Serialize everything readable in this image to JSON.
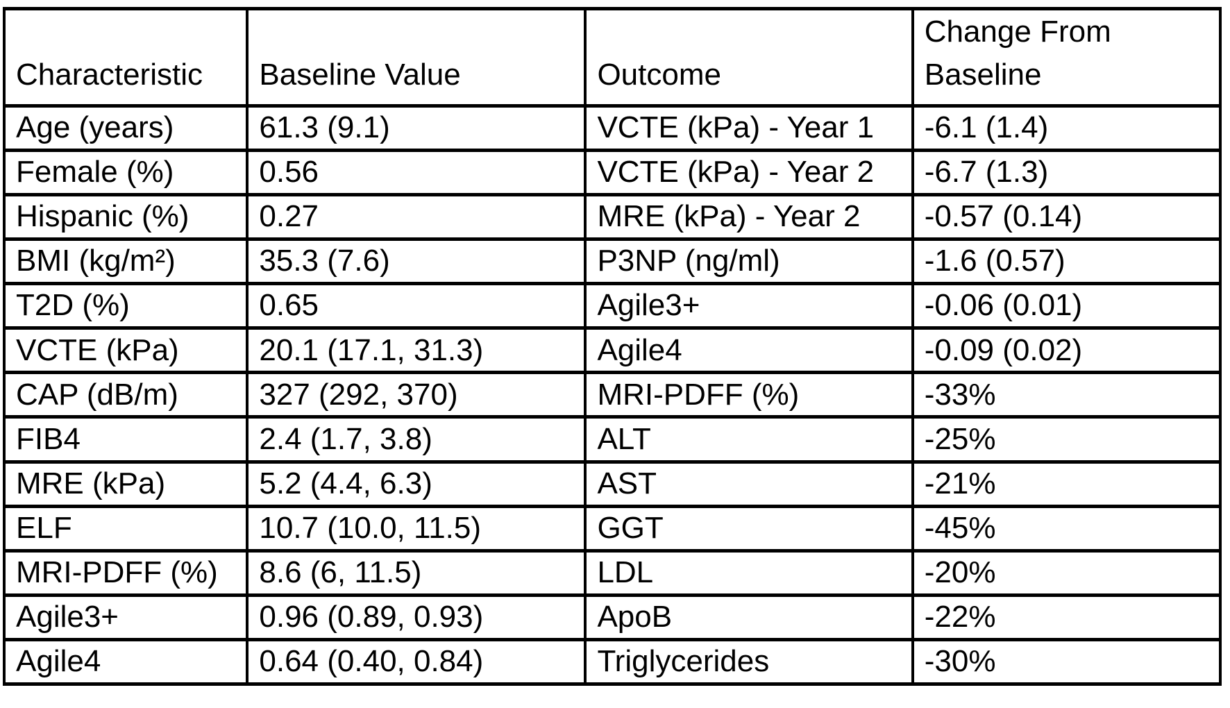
{
  "table": {
    "columns": [
      {
        "label": "Characteristic"
      },
      {
        "label": "Baseline Value"
      },
      {
        "label": "Outcome"
      },
      {
        "label": "Change From Baseline"
      }
    ],
    "rows": [
      {
        "cells": [
          "Age (years)",
          "61.3 (9.1)",
          "VCTE (kPa) - Year 1",
          "-6.1 (1.4)"
        ]
      },
      {
        "cells": [
          "Female (%)",
          "0.56",
          "VCTE (kPa) - Year 2",
          "-6.7 (1.3)"
        ]
      },
      {
        "cells": [
          "Hispanic (%)",
          "0.27",
          "MRE (kPa) - Year 2",
          "-0.57 (0.14)"
        ]
      },
      {
        "cells": [
          "BMI (kg/m²)",
          "35.3 (7.6)",
          "P3NP (ng/ml)",
          "-1.6 (0.57)"
        ]
      },
      {
        "cells": [
          "T2D (%)",
          "0.65",
          "Agile3+",
          "-0.06 (0.01)"
        ]
      },
      {
        "cells": [
          "VCTE (kPa)",
          "20.1 (17.1, 31.3)",
          "Agile4",
          "-0.09 (0.02)"
        ]
      },
      {
        "cells": [
          "CAP (dB/m)",
          "327 (292, 370)",
          "MRI-PDFF (%)",
          "-33%"
        ]
      },
      {
        "cells": [
          "FIB4",
          "2.4 (1.7, 3.8)",
          "ALT",
          "-25%"
        ]
      },
      {
        "cells": [
          "MRE (kPa)",
          "5.2 (4.4, 6.3)",
          "AST",
          "-21%"
        ]
      },
      {
        "cells": [
          "ELF",
          "10.7 (10.0, 11.5)",
          "GGT",
          "-45%"
        ]
      },
      {
        "cells": [
          "MRI-PDFF (%)",
          "8.6 (6, 11.5)",
          "LDL",
          "-20%"
        ]
      },
      {
        "cells": [
          "Agile3+",
          "0.96 (0.89, 0.93)",
          "ApoB",
          "-22%"
        ]
      },
      {
        "cells": [
          "Agile4",
          "0.64 (0.40, 0.84)",
          "Triglycerides",
          "-30%"
        ]
      }
    ],
    "colors": {
      "border": "#000000",
      "text": "#000000",
      "background": "#ffffff"
    }
  }
}
